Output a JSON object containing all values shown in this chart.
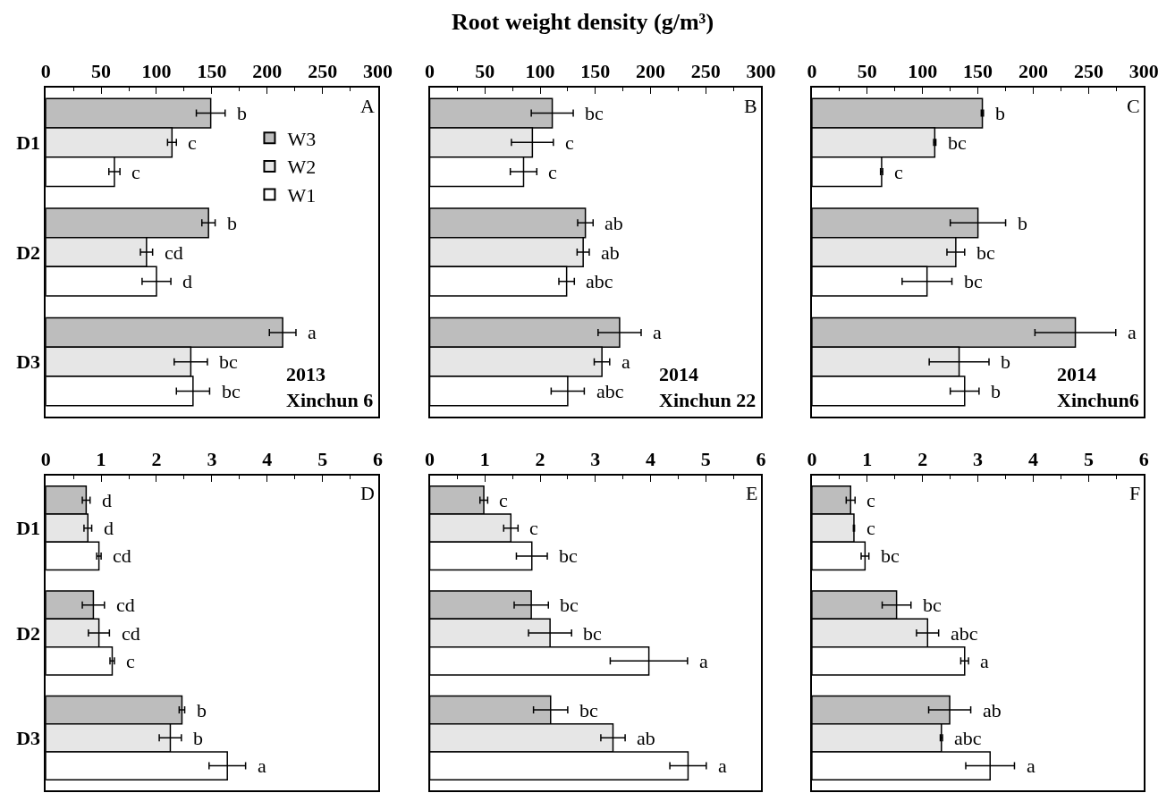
{
  "chart_data": [
    {
      "type": "bar",
      "orientation": "horizontal",
      "categories": [
        "D1",
        "D2",
        "D3"
      ],
      "xlim": [
        0,
        300
      ],
      "xticks": [
        0,
        50,
        100,
        150,
        200,
        250,
        300
      ],
      "legend": "top right",
      "annotations": [
        "A",
        "2013\nXinchun 6"
      ],
      "series": [
        {
          "name": "W3",
          "color": "#bdbdbd",
          "values": [
            149,
            147,
            214
          ],
          "errors": [
            13,
            6,
            12
          ],
          "value_labels": [
            "b",
            "b",
            "a"
          ]
        },
        {
          "name": "W2",
          "color": "#e6e6e6",
          "values": [
            114,
            91,
            131
          ],
          "errors": [
            4,
            5.5,
            15
          ],
          "value_labels": [
            "c",
            "cd",
            "bc"
          ]
        },
        {
          "name": "W1",
          "color": "#ffffff",
          "values": [
            62,
            100,
            133
          ],
          "errors": [
            5,
            13,
            15
          ],
          "value_labels": [
            "c",
            "d",
            "bc"
          ]
        }
      ]
    },
    {
      "type": "bar",
      "orientation": "horizontal",
      "title": "Root weight density (g/m³)",
      "categories": [
        "D1",
        "D2",
        "D3"
      ],
      "xlim": [
        0,
        300
      ],
      "xticks": [
        0,
        50,
        100,
        150,
        200,
        250,
        300
      ],
      "tick_labels": "x",
      "annotations": [
        "B",
        "2014\nXinchun 22"
      ],
      "series": [
        {
          "color": "#bdbdbd",
          "values": [
            111,
            141,
            172
          ],
          "errors": [
            19,
            7,
            19.5
          ],
          "value_labels": [
            "bc",
            "ab",
            "a"
          ]
        },
        {
          "color": "#e6e6e6",
          "values": [
            93,
            139,
            156
          ],
          "errors": [
            19,
            5.5,
            7
          ],
          "value_labels": [
            "c",
            "ab",
            "a"
          ]
        },
        {
          "color": "#ffffff",
          "values": [
            85,
            124,
            125
          ],
          "errors": [
            12,
            7,
            15
          ],
          "value_labels": [
            "c",
            "abc",
            "abc"
          ]
        }
      ]
    },
    {
      "type": "bar",
      "orientation": "horizontal",
      "categories": [
        "D1",
        "D2",
        "D3"
      ],
      "xlim": [
        0,
        300
      ],
      "xticks": [
        0,
        50,
        100,
        150,
        200,
        250,
        300
      ],
      "tick_labels": "x",
      "annotations": [
        "C",
        "2014\nXinchun6"
      ],
      "series": [
        {
          "color": "#bdbdbd",
          "values": [
            154,
            150,
            238
          ],
          "errors": [
            1,
            25,
            36.5
          ],
          "value_labels": [
            "b",
            "b",
            "a"
          ]
        },
        {
          "color": "#e6e6e6",
          "values": [
            111,
            130,
            133
          ],
          "errors": [
            1,
            8,
            27
          ],
          "value_labels": [
            "bc",
            "bc",
            "b"
          ]
        },
        {
          "color": "#ffffff",
          "values": [
            63,
            104,
            138
          ],
          "errors": [
            1,
            22.5,
            13
          ],
          "value_labels": [
            "c",
            "bc",
            "b"
          ]
        }
      ]
    },
    {
      "type": "bar",
      "orientation": "horizontal",
      "categories": [
        "D1",
        "D2",
        "D3"
      ],
      "xlim": [
        0,
        6
      ],
      "xticks": [
        0,
        1,
        2,
        3,
        4,
        5,
        6
      ],
      "annotations": [
        "D"
      ],
      "series": [
        {
          "color": "#bdbdbd",
          "values": [
            0.73,
            0.86,
            2.46
          ],
          "errors": [
            0.07,
            0.2,
            0.05
          ],
          "value_labels": [
            "d",
            "cd",
            "b"
          ]
        },
        {
          "color": "#e6e6e6",
          "values": [
            0.76,
            0.96,
            2.25
          ],
          "errors": [
            0.07,
            0.19,
            0.2
          ],
          "value_labels": [
            "d",
            "cd",
            "b"
          ]
        },
        {
          "color": "#ffffff",
          "values": [
            0.96,
            1.2,
            3.28
          ],
          "errors": [
            0.04,
            0.04,
            0.33
          ],
          "value_labels": [
            "cd",
            "c",
            "a"
          ]
        }
      ]
    },
    {
      "type": "bar",
      "orientation": "horizontal",
      "categories": [
        "D1",
        "D2",
        "D3"
      ],
      "xlim": [
        0,
        6
      ],
      "xticks": [
        0,
        1,
        2,
        3,
        4,
        5,
        6
      ],
      "tick_labels": "x",
      "annotations": [
        "E"
      ],
      "series": [
        {
          "color": "#bdbdbd",
          "values": [
            0.98,
            1.84,
            2.19
          ],
          "errors": [
            0.07,
            0.31,
            0.31
          ],
          "value_labels": [
            "c",
            "bc",
            "bc"
          ]
        },
        {
          "color": "#e6e6e6",
          "values": [
            1.47,
            2.18,
            3.32
          ],
          "errors": [
            0.13,
            0.39,
            0.22
          ],
          "value_labels": [
            "c",
            "bc",
            "ab"
          ]
        },
        {
          "color": "#ffffff",
          "values": [
            1.85,
            3.97,
            4.68
          ],
          "errors": [
            0.28,
            0.7,
            0.33
          ],
          "value_labels": [
            "bc",
            "a",
            "a"
          ]
        }
      ]
    },
    {
      "type": "bar",
      "orientation": "horizontal",
      "categories": [
        "D1",
        "D2",
        "D3"
      ],
      "xlim": [
        0,
        6
      ],
      "xticks": [
        0,
        1,
        2,
        3,
        4,
        5,
        6
      ],
      "tick_labels": "x",
      "annotations": [
        "F"
      ],
      "series": [
        {
          "color": "#bdbdbd",
          "values": [
            0.7,
            1.53,
            2.49
          ],
          "errors": [
            0.08,
            0.26,
            0.38
          ],
          "value_labels": [
            "c",
            "bc",
            "ab"
          ]
        },
        {
          "color": "#e6e6e6",
          "values": [
            0.76,
            2.09,
            2.34
          ],
          "errors": [
            0.01,
            0.2,
            0.02
          ],
          "value_labels": [
            "c",
            "abc",
            "abc"
          ]
        },
        {
          "color": "#ffffff",
          "values": [
            0.96,
            2.76,
            3.22
          ],
          "errors": [
            0.07,
            0.07,
            0.44
          ],
          "value_labels": [
            "bc",
            "a",
            "a"
          ]
        }
      ]
    }
  ]
}
